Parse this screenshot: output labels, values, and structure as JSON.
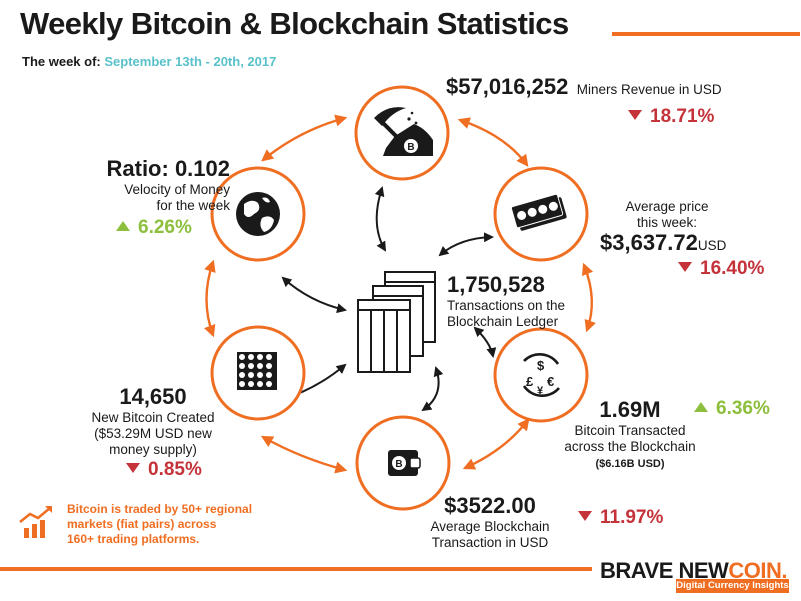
{
  "header": {
    "title": "Weekly Bitcoin & Blockchain Statistics",
    "week_label": "The week of:",
    "week_dates": "September 13th - 20th, 2017"
  },
  "stats": {
    "miners": {
      "value": "$57,016,252",
      "label": "Miners Revenue in USD",
      "change": "18.71%",
      "direction": "down"
    },
    "price": {
      "label_line1": "Average price",
      "label_line2": "this week:",
      "value": "$3,637.72",
      "unit": "USD",
      "change": "16.40%",
      "direction": "down"
    },
    "ratio": {
      "value": "Ratio: 0.102",
      "label_line1": "Velocity of Money",
      "label_line2": "for the week",
      "change": "6.26%",
      "direction": "up"
    },
    "transactions": {
      "value": "1,750,528",
      "label_line1": "Transactions on the",
      "label_line2": "Blockchain Ledger"
    },
    "transacted": {
      "value": "1.69M",
      "label_line1": "Bitcoin Transacted",
      "label_line2": "across the Blockchain",
      "sub": "($6.16B USD)",
      "change": "6.36%",
      "direction": "up"
    },
    "created": {
      "value": "14,650",
      "label_line1": "New Bitcoin Created",
      "label_line2": "($53.29M USD new",
      "label_line3": "money supply)",
      "change": "0.85%",
      "direction": "down"
    },
    "avg_tx": {
      "value": "$3522.00",
      "label_line1": "Average Blockchain",
      "label_line2": "Transaction in USD",
      "change": "11.97%",
      "direction": "down"
    }
  },
  "note": {
    "line1": "Bitcoin is traded by 50+ regional",
    "line2": "markets (fiat pairs) across",
    "line3": "160+ trading platforms."
  },
  "footer": {
    "brand_a": "BRAVE NEW",
    "brand_b": "COIN.",
    "tagline": "Digital Currency Insights"
  },
  "icons": {
    "pickaxe": "pickaxe-mining-icon",
    "banknotes": "banknotes-icon",
    "currency": "currency-exchange-icon",
    "wallet": "wallet-icon",
    "coins": "coin-stacks-icon",
    "globe": "globe-icon",
    "ledger": "ledger-pages-icon",
    "chart": "rising-chart-icon"
  },
  "colors": {
    "accent": "#f06e22",
    "down": "#c4323a",
    "up": "#8dbf3d",
    "date": "#58c1c9",
    "ink": "#1a1a1a"
  }
}
